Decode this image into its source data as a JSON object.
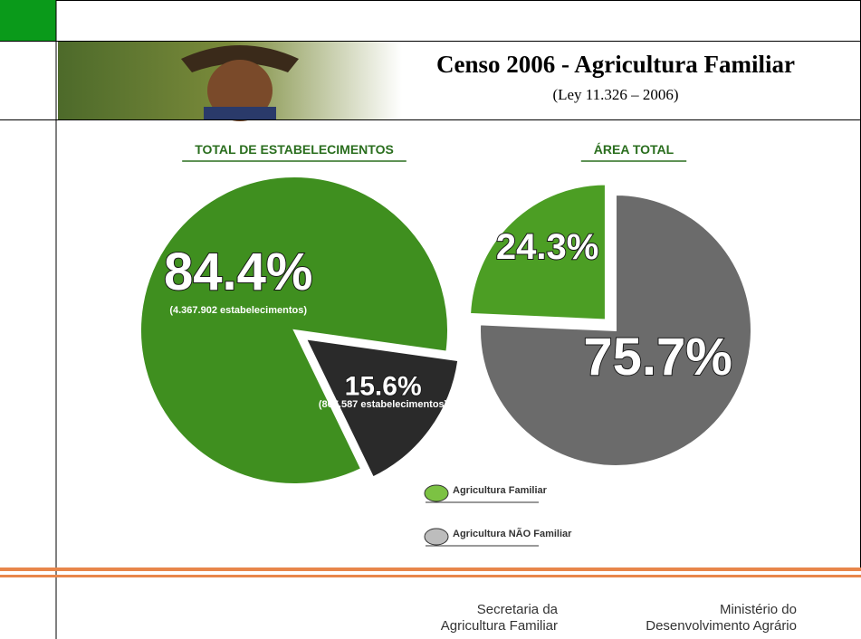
{
  "header": {
    "title": "Censo 2006 - Agricultura Familiar",
    "subtitle": "(Ley 11.326 – 2006)"
  },
  "chart_data": [
    {
      "type": "pie",
      "title": "TOTAL DE ESTABELECIMENTOS",
      "categories": [
        "Agricultura Familiar",
        "Agricultura NÃO Familiar"
      ],
      "values": [
        84.4,
        15.6
      ],
      "value_labels": [
        "84.4%",
        "15.6%"
      ],
      "annotations": [
        "(4.367.902 estabelecimentos)",
        "(807.587 estabelecimentos)"
      ],
      "colors": [
        "#3f8f1f",
        "#2a2a2a"
      ]
    },
    {
      "type": "pie",
      "title": "ÁREA TOTAL",
      "categories": [
        "Agricultura Familiar",
        "Agricultura NÃO Familiar"
      ],
      "values": [
        24.3,
        75.7
      ],
      "value_labels": [
        "24.3%",
        "75.7%"
      ],
      "colors": [
        "#4c9e24",
        "#6b6b6b"
      ]
    }
  ],
  "legend": {
    "items": [
      {
        "label": "Agricultura Familiar",
        "color": "#7cc243"
      },
      {
        "label": "Agricultura NÃO Familiar",
        "color": "#bdbdbd"
      }
    ]
  },
  "footer": {
    "left": [
      "Secretaria da",
      "Agricultura Familiar"
    ],
    "right": [
      "Ministério do",
      "Desenvolvimento Agrário"
    ]
  }
}
